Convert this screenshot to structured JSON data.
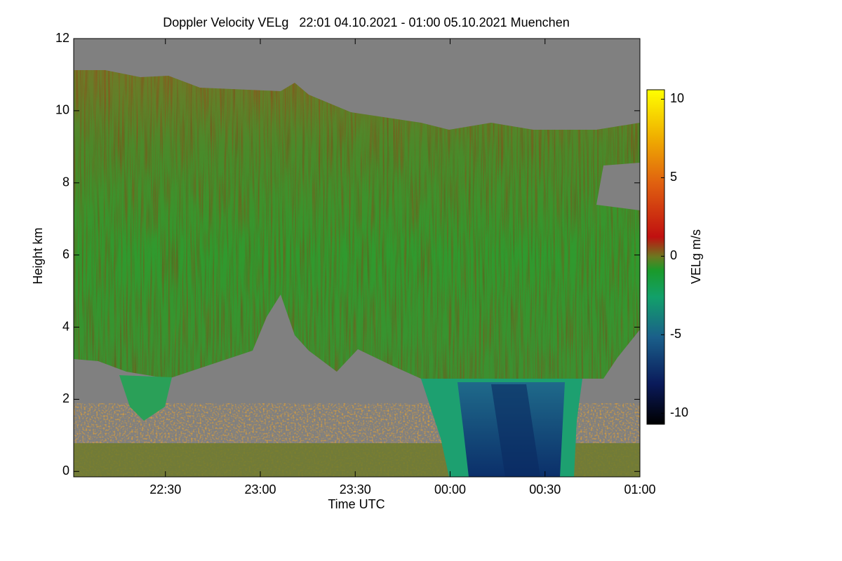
{
  "chart_data": {
    "type": "heatmap",
    "title": "Doppler Velocity VELg   22:01 04.10.2021 - 01:00 05.10.2021 Muenchen",
    "x_label": "Time UTC",
    "y_label": "Height km",
    "colorbar_label": "VELg m/s",
    "xlim": [
      "22:01",
      "01:00"
    ],
    "xticks": [
      "22:30",
      "23:00",
      "23:30",
      "00:00",
      "00:30",
      "01:00"
    ],
    "ylim": [
      -0.15,
      12
    ],
    "yticks": [
      0,
      2,
      4,
      6,
      8,
      10,
      12
    ],
    "clim": [
      -10.7,
      10.6
    ],
    "cticks": [
      -10,
      -5,
      0,
      5,
      10
    ]
  }
}
